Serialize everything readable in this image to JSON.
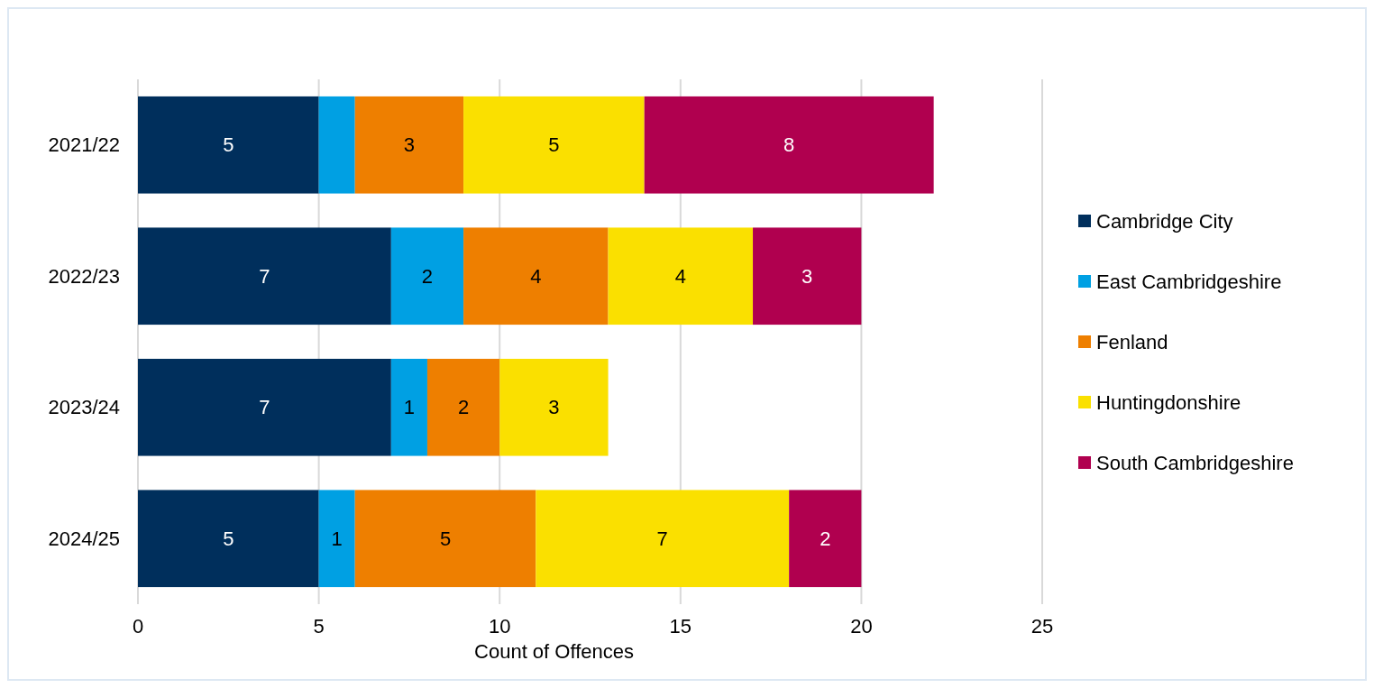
{
  "chart_data": {
    "type": "bar",
    "orientation": "horizontal",
    "stacked": true,
    "xlabel": "Count of Offences",
    "categories": [
      "2021/22",
      "2022/23",
      "2023/24",
      "2024/25"
    ],
    "series": [
      {
        "name": "Cambridge City",
        "color": "#002f5c",
        "values": [
          5,
          7,
          7,
          5
        ],
        "value_labels": [
          "5",
          "7",
          "7",
          "5"
        ]
      },
      {
        "name": "East Cambridgeshire",
        "color": "#00a0e3",
        "values": [
          1,
          2,
          1,
          1
        ],
        "value_labels": [
          null,
          "2",
          "1",
          "1"
        ]
      },
      {
        "name": "Fenland",
        "color": "#ee7f00",
        "values": [
          3,
          4,
          2,
          5
        ],
        "value_labels": [
          "3",
          "4",
          "2",
          "5"
        ]
      },
      {
        "name": "Huntingdonshire",
        "color": "#fae000",
        "values": [
          5,
          4,
          3,
          7
        ],
        "value_labels": [
          "5",
          "4",
          "3",
          "7"
        ]
      },
      {
        "name": "South Cambridgeshire",
        "color": "#b0004f",
        "values": [
          8,
          3,
          null,
          2
        ],
        "value_labels": [
          "8",
          "3",
          null,
          "2"
        ]
      }
    ],
    "xlim": [
      0,
      25
    ],
    "xticks": [
      0,
      5,
      10,
      15,
      20,
      25
    ],
    "grid": "x",
    "legend": "right"
  }
}
